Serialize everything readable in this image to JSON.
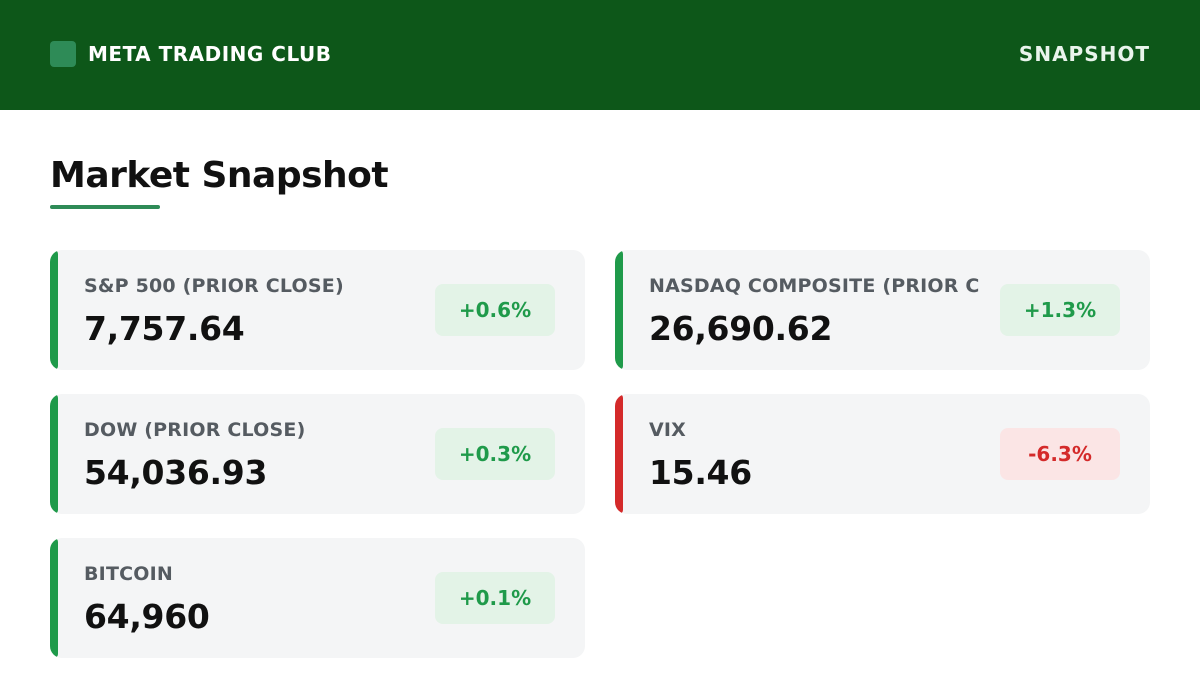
{
  "header": {
    "brand_name": "META TRADING CLUB",
    "right_label": "SNAPSHOT",
    "logo_icon": "square-logo-icon"
  },
  "page": {
    "title": "Market Snapshot"
  },
  "colors": {
    "header_bg": "#0d5719",
    "accent_up": "#1f9a4a",
    "accent_down": "#d42a2a",
    "badge_up_bg": "#e3f3e7",
    "badge_down_bg": "#fbe5e5",
    "card_bg": "#f4f5f6",
    "underline": "#2e8b57"
  },
  "cards": [
    {
      "label": "S&P 500 (PRIOR CLOSE)",
      "value": "7,757.64",
      "change": "+0.6%",
      "direction": "up"
    },
    {
      "label": "NASDAQ COMPOSITE (PRIOR CLOSE)",
      "value": "26,690.62",
      "change": "+1.3%",
      "direction": "up"
    },
    {
      "label": "DOW (PRIOR CLOSE)",
      "value": "54,036.93",
      "change": "+0.3%",
      "direction": "up"
    },
    {
      "label": "VIX",
      "value": "15.46",
      "change": "-6.3%",
      "direction": "down"
    },
    {
      "label": "BITCOIN",
      "value": "64,960",
      "change": "+0.1%",
      "direction": "up"
    }
  ]
}
